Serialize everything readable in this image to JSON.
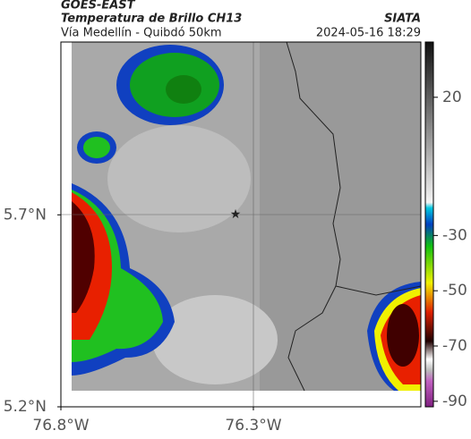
{
  "header": {
    "source": "GOES-EAST",
    "title": "Temperatura de Brillo CH13",
    "org": "SIATA",
    "subtitle": "Vía Medellín - Quibdó 50km",
    "datetime": "2024-05-16 18:29"
  },
  "map": {
    "xlim": [
      -76.8,
      -75.865
    ],
    "ylim": [
      5.2,
      6.15
    ],
    "xticks": [
      {
        "value": -76.8,
        "label": "76.8°W"
      },
      {
        "value": -76.3,
        "label": "76.3°W"
      }
    ],
    "yticks": [
      {
        "value": 5.7,
        "label": "5.7°N"
      },
      {
        "value": 5.2,
        "label": "5.2°N"
      }
    ]
  },
  "colorbar": {
    "lim": [
      -92,
      40
    ],
    "ticks": [
      20,
      -30,
      -50,
      -70,
      -90
    ]
  }
}
